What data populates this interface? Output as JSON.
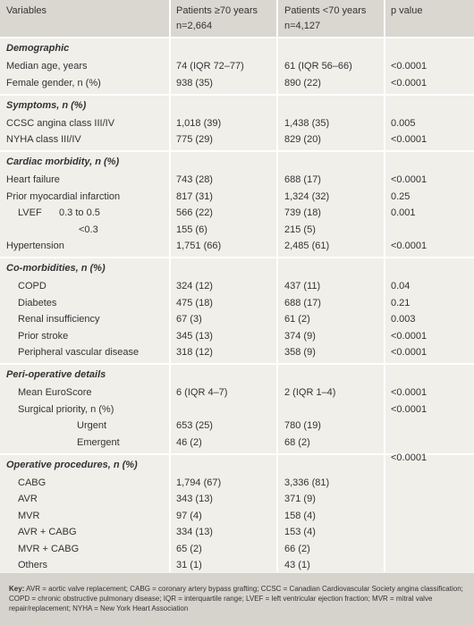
{
  "header": {
    "variables": "Variables",
    "group1": "Patients ≥70 years",
    "group1_n": "n=2,664",
    "group2": "Patients <70 years",
    "group2_n": "n=4,127",
    "p_value": "p value"
  },
  "sections": [
    {
      "title": "Demographic",
      "rows": [
        {
          "label": "Median age, years",
          "values": [
            "74 (IQR 72–77)",
            "61 (IQR 56–66)",
            "<0.0001"
          ]
        },
        {
          "label": "Female gender, n (%)",
          "values": [
            "938 (35)",
            "890 (22)",
            "<0.0001"
          ]
        }
      ]
    },
    {
      "title": "Symptoms, n (%)",
      "rows": [
        {
          "label": "CCSC angina class III/IV",
          "values": [
            "1,018 (39)",
            "1,438 (35)",
            "0.005"
          ]
        },
        {
          "label": "NYHA class III/IV",
          "values": [
            "775 (29)",
            "829 (20)",
            "<0.0001"
          ]
        }
      ]
    },
    {
      "title": "Cardiac morbidity, n (%)",
      "rows": [
        {
          "label": "Heart failure",
          "values": [
            "743 (28)",
            "688 (17)",
            "<0.0001"
          ]
        },
        {
          "label": "Prior myocardial infarction",
          "values": [
            "817 (31)",
            "1,324 (32)",
            "0.25"
          ]
        },
        {
          "label": "LVEF",
          "qualifier": "0.3 to 0.5",
          "values": [
            "566 (22)",
            "739 (18)",
            "0.001"
          ]
        },
        {
          "label": "<0.3",
          "values": [
            "155 (6)",
            "215 (5)",
            null
          ]
        },
        {
          "label": "Hypertension",
          "values": [
            "1,751 (66)",
            "2,485 (61)",
            "<0.0001"
          ]
        }
      ]
    },
    {
      "title": "Co-morbidities, n (%)",
      "rows": [
        {
          "label": "COPD",
          "values": [
            "324 (12)",
            "437 (11)",
            "0.04"
          ]
        },
        {
          "label": "Diabetes",
          "values": [
            "475 (18)",
            "688 (17)",
            "0.21"
          ]
        },
        {
          "label": "Renal insufficiency",
          "values": [
            "67 (3)",
            "61 (2)",
            "0.003"
          ]
        },
        {
          "label": "Prior stroke",
          "values": [
            "345 (13)",
            "374 (9)",
            "<0.0001"
          ]
        },
        {
          "label": "Peripheral vascular disease",
          "values": [
            "318 (12)",
            "358 (9)",
            "<0.0001"
          ]
        }
      ]
    },
    {
      "title": "Peri-operative details",
      "rows": [
        {
          "label": "Mean EuroScore",
          "values": [
            "6 (IQR 4–7)",
            "2 (IQR 1–4)",
            "<0.0001"
          ]
        },
        {
          "label": "Surgical priority, n (%)",
          "values": [
            null,
            null,
            "<0.0001"
          ]
        },
        {
          "label": "Urgent",
          "values": [
            "653 (25)",
            "780 (19)",
            null
          ]
        },
        {
          "label": "Emergent",
          "values": [
            "46 (2)",
            "68 (2)",
            null
          ]
        }
      ]
    },
    {
      "title": "Operative procedures, n (%)",
      "p_value": "<0.0001",
      "rows": [
        {
          "label": "CABG",
          "values": [
            "1,794 (67)",
            "3,336 (81)",
            null
          ]
        },
        {
          "label": "AVR",
          "values": [
            "343 (13)",
            "371 (9)",
            null
          ]
        },
        {
          "label": "MVR",
          "values": [
            "97 (4)",
            "158 (4)",
            null
          ]
        },
        {
          "label": "AVR + CABG",
          "values": [
            "334 (13)",
            "153 (4)",
            null
          ]
        },
        {
          "label": "MVR + CABG",
          "values": [
            "65 (2)",
            "66 (2)",
            null
          ]
        },
        {
          "label": "Others",
          "values": [
            "31 (1)",
            "43 (1)",
            null
          ]
        }
      ]
    }
  ],
  "key": {
    "label": "Key:",
    "text": "AVR = aortic valve replacement; CABG = coronary artery bypass grafting; CCSC = Canadian Cardiovascular Society angina classification; COPD = chronic obstructive pulmonary disease; IQR = interquartile range; LVEF = left ventricular ejection fraction; MVR = mitral valve repair/replacement; NYHA = New York Heart Association"
  }
}
